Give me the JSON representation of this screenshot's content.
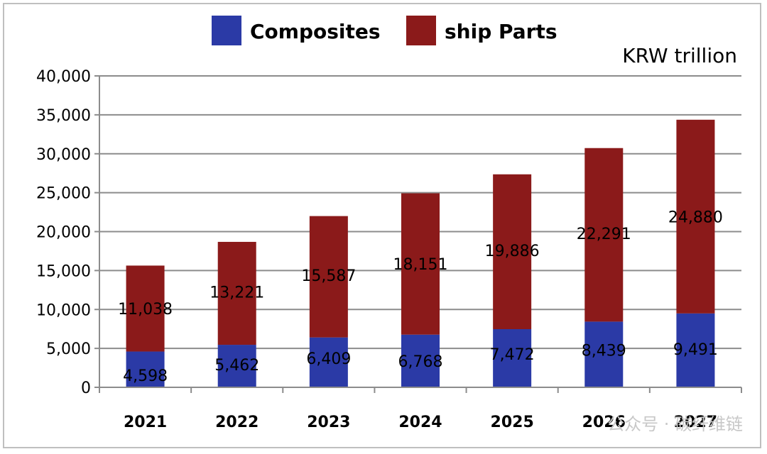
{
  "chart_data": {
    "type": "bar",
    "stacked": true,
    "categories": [
      "2021",
      "2022",
      "2023",
      "2024",
      "2025",
      "2026",
      "2027"
    ],
    "series": [
      {
        "name": "Composites",
        "values": [
          4598,
          5462,
          6409,
          6768,
          7472,
          8439,
          9491
        ],
        "color": "#2b3aa6"
      },
      {
        "name": "ship Parts",
        "values": [
          11038,
          13221,
          15587,
          18151,
          19886,
          22291,
          24880
        ],
        "color": "#8b1a1a"
      }
    ],
    "value_labels": {
      "Composites": [
        "4,598",
        "5,462",
        "6,409",
        "6,768",
        "7,472",
        "8,439",
        "9,491"
      ],
      "ship Parts": [
        "11,038",
        "13,221",
        "15,587",
        "18,151",
        "19,886",
        "22,291",
        "24,880"
      ]
    },
    "unit_label": "KRW trillion",
    "ylim": [
      0,
      40000
    ],
    "yticks": [
      0,
      5000,
      10000,
      15000,
      20000,
      25000,
      30000,
      35000,
      40000
    ],
    "ytick_labels": [
      "0",
      "5,000",
      "10,000",
      "15,000",
      "20,000",
      "25,000",
      "30,000",
      "35,000",
      "40,000"
    ],
    "grid": true,
    "legend_position": "top-center"
  },
  "watermark": "公众号 · 碳纤维链"
}
